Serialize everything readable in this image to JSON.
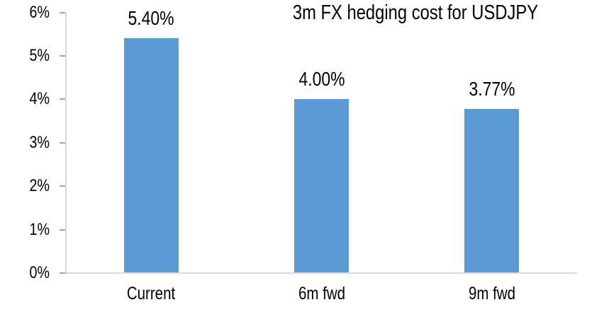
{
  "chart_data": {
    "type": "bar",
    "title": "3m FX hedging cost for USDJPY",
    "categories": [
      "Current",
      "6m fwd",
      "9m fwd"
    ],
    "values": [
      5.4,
      4.0,
      3.77
    ],
    "data_labels": [
      "5.40%",
      "4.00%",
      "3.77%"
    ],
    "xlabel": "",
    "ylabel": "",
    "ylim": [
      0,
      6
    ],
    "y_tick_step": 1,
    "y_tick_labels": [
      "0%",
      "1%",
      "2%",
      "3%",
      "4%",
      "5%",
      "6%"
    ],
    "grid": false,
    "legend": "none",
    "colors": {
      "bar": "#5B9BD5",
      "axis_line": "#D9D9D9",
      "tick": "#A6A6A6",
      "text": "#000000",
      "background": "#FFFFFF"
    }
  }
}
